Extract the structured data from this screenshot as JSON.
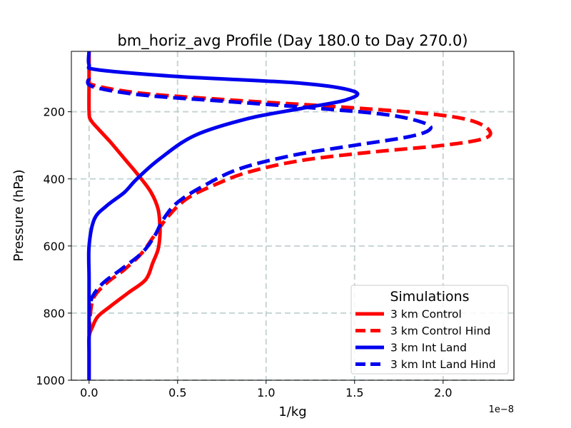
{
  "chart_data": {
    "type": "line",
    "title": "bm_horiz_avg Profile (Day 180.0 to Day 270.0)",
    "xlabel": "1/kg",
    "ylabel": "Pressure (hPa)",
    "x_offset_label": "1e−8",
    "xlim": [
      -0.1,
      2.4
    ],
    "ylim": [
      1000,
      20
    ],
    "y_inverted": true,
    "x_ticks": [
      0.0,
      0.5,
      1.0,
      1.5,
      2.0
    ],
    "x_tick_labels": [
      "0.0",
      "0.5",
      "1.0",
      "1.5",
      "2.0"
    ],
    "y_ticks": [
      200,
      400,
      600,
      800,
      1000
    ],
    "y_tick_labels": [
      "200",
      "400",
      "600",
      "800",
      "1000"
    ],
    "grid": true,
    "legend": {
      "title": "Simulations",
      "placement": "lower-right"
    },
    "series": [
      {
        "name": "3 km Control",
        "color": "#ff0000",
        "style": "solid",
        "x": [
          0,
          0,
          0,
          0.01,
          0.05,
          0.12,
          0.2,
          0.28,
          0.35,
          0.39,
          0.4,
          0.4,
          0.39,
          0.36,
          0.32,
          0.22,
          0.12,
          0.05,
          0.02,
          0.0,
          0.0,
          0.0
        ],
        "y": [
          20,
          100,
          200,
          225,
          250,
          290,
          340,
          390,
          440,
          490,
          540,
          570,
          610,
          650,
          700,
          740,
          780,
          810,
          840,
          870,
          920,
          1000
        ]
      },
      {
        "name": "3 km Control Hind",
        "color": "#ff0000",
        "style": "dashed",
        "x": [
          0,
          0.02,
          0.3,
          0.8,
          1.4,
          1.9,
          2.15,
          2.26,
          2.23,
          2.0,
          1.6,
          1.2,
          0.9,
          0.7,
          0.55,
          0.45,
          0.38,
          0.3,
          0.2,
          0.1,
          0.03,
          0.01,
          0.0
        ],
        "y": [
          100,
          120,
          145,
          165,
          185,
          205,
          225,
          255,
          280,
          300,
          320,
          345,
          380,
          420,
          460,
          510,
          560,
          620,
          670,
          710,
          750,
          790,
          860
        ]
      },
      {
        "name": "3 km Int Land",
        "color": "#0000ee",
        "style": "solid",
        "x": [
          0,
          0.0,
          0.05,
          0.5,
          1.2,
          1.5,
          1.45,
          1.2,
          0.9,
          0.6,
          0.4,
          0.27,
          0.2,
          0.1,
          0.03,
          0.0,
          0.0,
          0.0,
          0.0
        ],
        "y": [
          20,
          60,
          75,
          95,
          115,
          140,
          165,
          190,
          220,
          270,
          340,
          400,
          440,
          480,
          520,
          600,
          700,
          850,
          1000
        ]
      },
      {
        "name": "3 km Int Land Hind",
        "color": "#0000ee",
        "style": "dashed",
        "x": [
          0,
          0.02,
          0.3,
          0.8,
          1.3,
          1.7,
          1.9,
          1.92,
          1.8,
          1.5,
          1.15,
          0.85,
          0.65,
          0.5,
          0.42,
          0.37,
          0.3,
          0.18,
          0.08,
          0.02,
          0.0
        ],
        "y": [
          100,
          125,
          150,
          170,
          190,
          210,
          235,
          255,
          275,
          300,
          330,
          370,
          420,
          470,
          520,
          570,
          620,
          670,
          710,
          750,
          790
        ]
      }
    ]
  }
}
